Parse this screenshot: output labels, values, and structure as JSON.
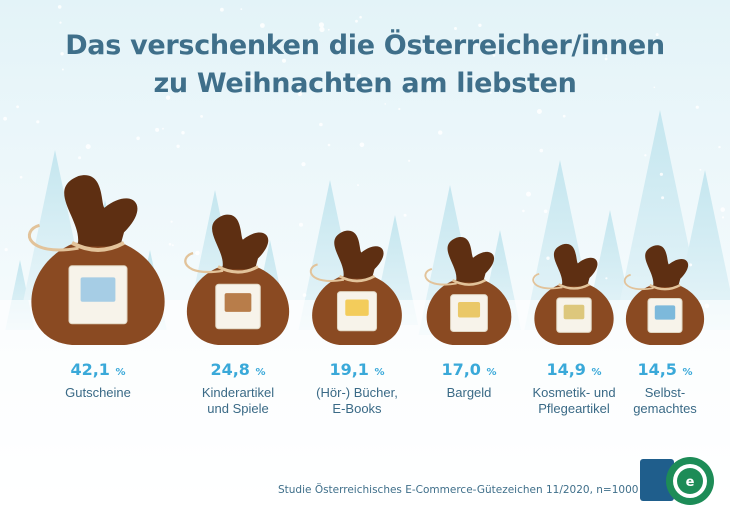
{
  "title_line1": "Das verschenken die Österreicher/innen",
  "title_line2": "zu Weihnachten am liebsten",
  "source": "Studie Österreichisches E-Commerce-Gütezeichen 11/2020, n=1000",
  "colors": {
    "title": "#3f6f8a",
    "value": "#3aa9d9",
    "bag": "#8a4a22",
    "bag_dark": "#5e2f12",
    "rope": "#e2c39a"
  },
  "logo_text": "ÖSTERREICHISCHES E-COMMERCE-GÜTEZEICHEN",
  "chart_data": {
    "type": "bar",
    "unit": "%",
    "categories": [
      "Gutscheine",
      "Kinderartikel und Spiele",
      "(Hör-) Bücher, E-Books",
      "Bargeld",
      "Kosmetik- und Pflegeartikel",
      "Selbst- gemachtes"
    ],
    "category_lines": [
      [
        "Gutscheine"
      ],
      [
        "Kinderartikel",
        "und Spiele"
      ],
      [
        "(Hör-) Bücher,",
        "E-Books"
      ],
      [
        "Bargeld"
      ],
      [
        "Kosmetik- und",
        "Pflegeartikel"
      ],
      [
        "Selbst-",
        "gemachtes"
      ]
    ],
    "value_labels": [
      "42,1",
      "24,8",
      "19,1",
      "17,0",
      "14,9",
      "14,5"
    ],
    "values": [
      42.1,
      24.8,
      19.1,
      17.0,
      14.9,
      14.5
    ],
    "icons": [
      "voucher-icon",
      "teddy-bear-icon",
      "books-icon",
      "money-icon",
      "cosmetics-icon",
      "knitting-icon"
    ]
  }
}
